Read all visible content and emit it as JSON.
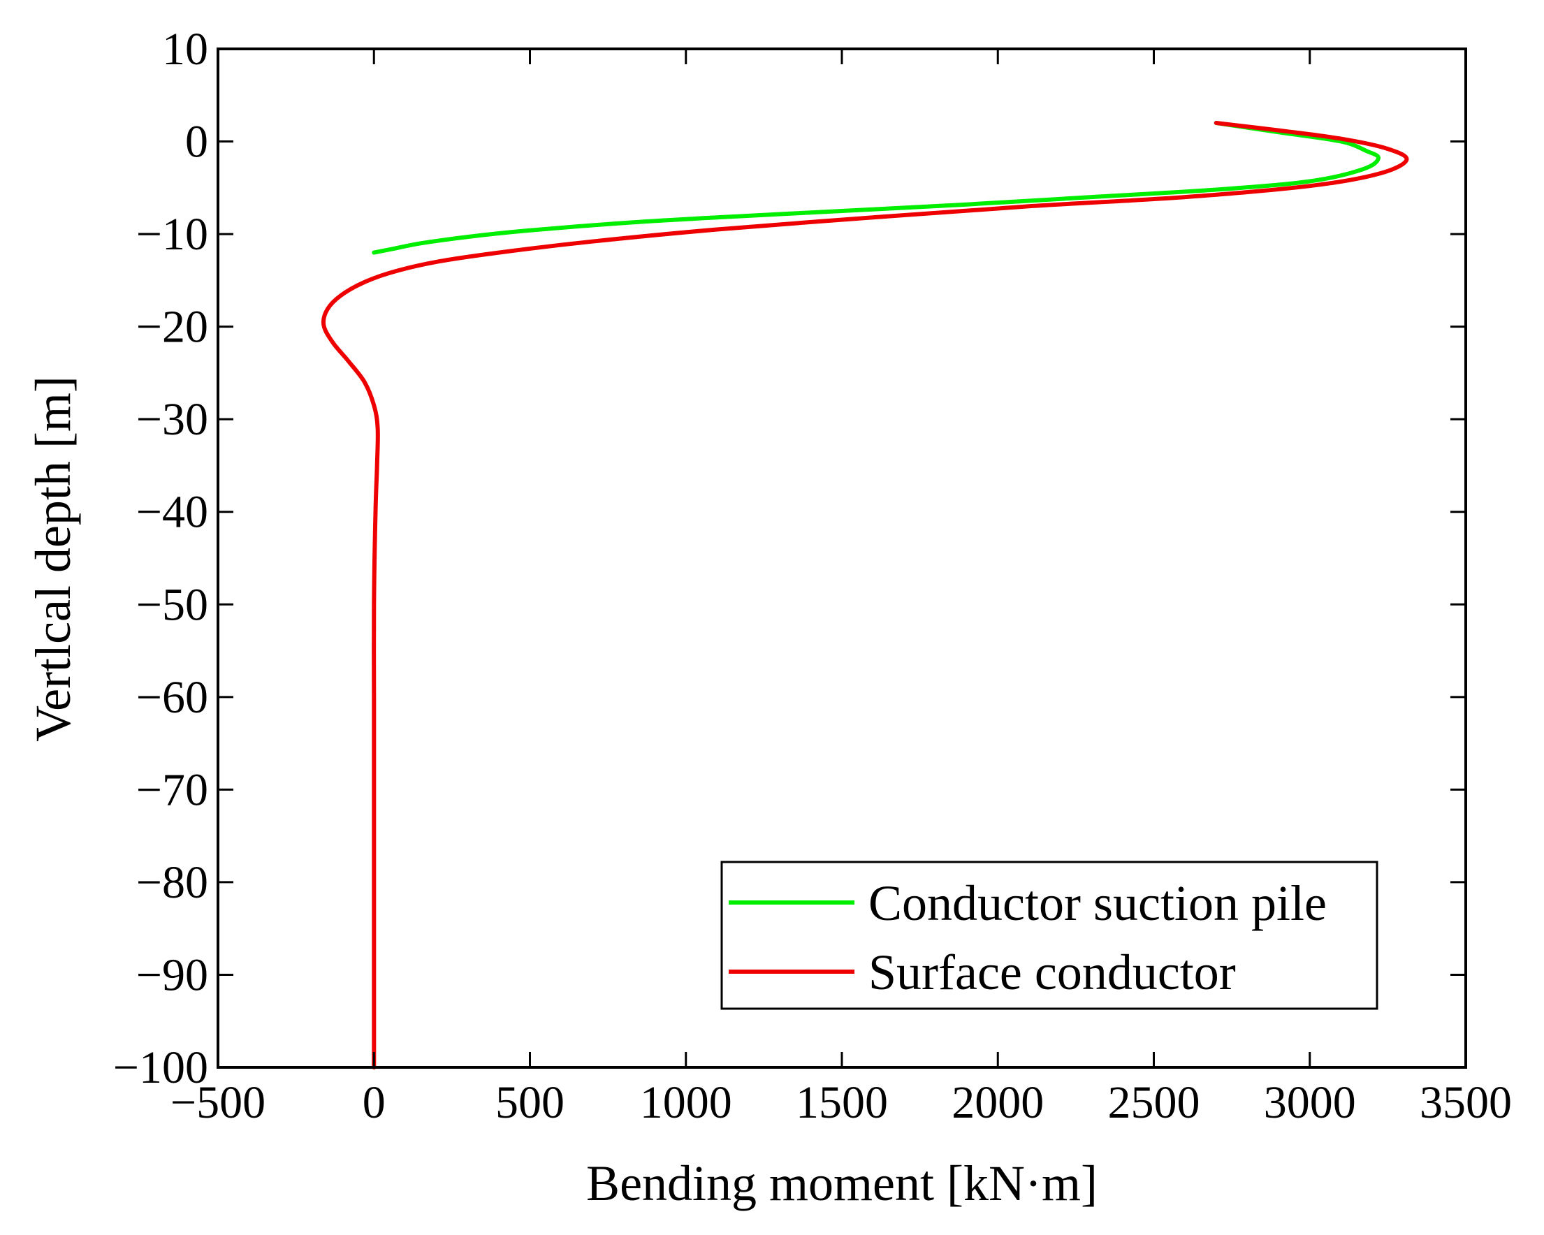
{
  "chart_data": {
    "type": "line",
    "title": "",
    "xlabel": "Bending moment [kN·m]",
    "ylabel": "Vertlcal depth [m]",
    "xlim": [
      -500,
      3500
    ],
    "ylim": [
      -100,
      10
    ],
    "xticks": [
      -500,
      0,
      500,
      1000,
      1500,
      2000,
      2500,
      3000,
      3500
    ],
    "yticks": [
      10,
      0,
      -10,
      -20,
      -30,
      -40,
      -50,
      -60,
      -70,
      -80,
      -90,
      -100
    ],
    "xtick_labels": [
      "−500",
      "0",
      "500",
      "1000",
      "1500",
      "2000",
      "2500",
      "3000",
      "3500"
    ],
    "ytick_labels": [
      "10",
      "0",
      "−10",
      "−20",
      "−30",
      "−40",
      "−50",
      "−60",
      "−70",
      "−80",
      "−90",
      "−100"
    ],
    "legend_position": "bottom-right",
    "series": [
      {
        "name": "Conductor suction pile",
        "color": "#00ee00",
        "points": [
          [
            2700,
            2
          ],
          [
            2900,
            1
          ],
          [
            3100,
            0
          ],
          [
            3180,
            -1
          ],
          [
            3220,
            -1.8
          ],
          [
            3170,
            -3
          ],
          [
            3000,
            -4.3
          ],
          [
            2700,
            -5.2
          ],
          [
            2300,
            -6
          ],
          [
            1900,
            -6.8
          ],
          [
            1500,
            -7.5
          ],
          [
            1100,
            -8.2
          ],
          [
            800,
            -8.8
          ],
          [
            500,
            -9.6
          ],
          [
            300,
            -10.3
          ],
          [
            150,
            -11
          ],
          [
            60,
            -11.6
          ],
          [
            0,
            -12
          ]
        ]
      },
      {
        "name": "Surface conductor",
        "color": "#ee0000",
        "points": [
          [
            2700,
            2
          ],
          [
            2900,
            1.2
          ],
          [
            3100,
            0.3
          ],
          [
            3250,
            -0.8
          ],
          [
            3310,
            -2
          ],
          [
            3220,
            -3.5
          ],
          [
            3000,
            -4.8
          ],
          [
            2600,
            -6
          ],
          [
            2100,
            -7
          ],
          [
            1600,
            -8.2
          ],
          [
            1100,
            -9.5
          ],
          [
            700,
            -10.8
          ],
          [
            400,
            -12
          ],
          [
            200,
            -13
          ],
          [
            50,
            -14.2
          ],
          [
            -50,
            -15.5
          ],
          [
            -120,
            -17
          ],
          [
            -155,
            -18.5
          ],
          [
            -160,
            -20
          ],
          [
            -130,
            -21.8
          ],
          [
            -80,
            -23.8
          ],
          [
            -30,
            -26
          ],
          [
            0,
            -28.5
          ],
          [
            12,
            -31
          ],
          [
            10,
            -35
          ],
          [
            5,
            -40
          ],
          [
            0,
            -50
          ],
          [
            0,
            -60
          ],
          [
            0,
            -70
          ],
          [
            0,
            -80
          ],
          [
            0,
            -90
          ],
          [
            0,
            -100
          ]
        ]
      }
    ]
  }
}
